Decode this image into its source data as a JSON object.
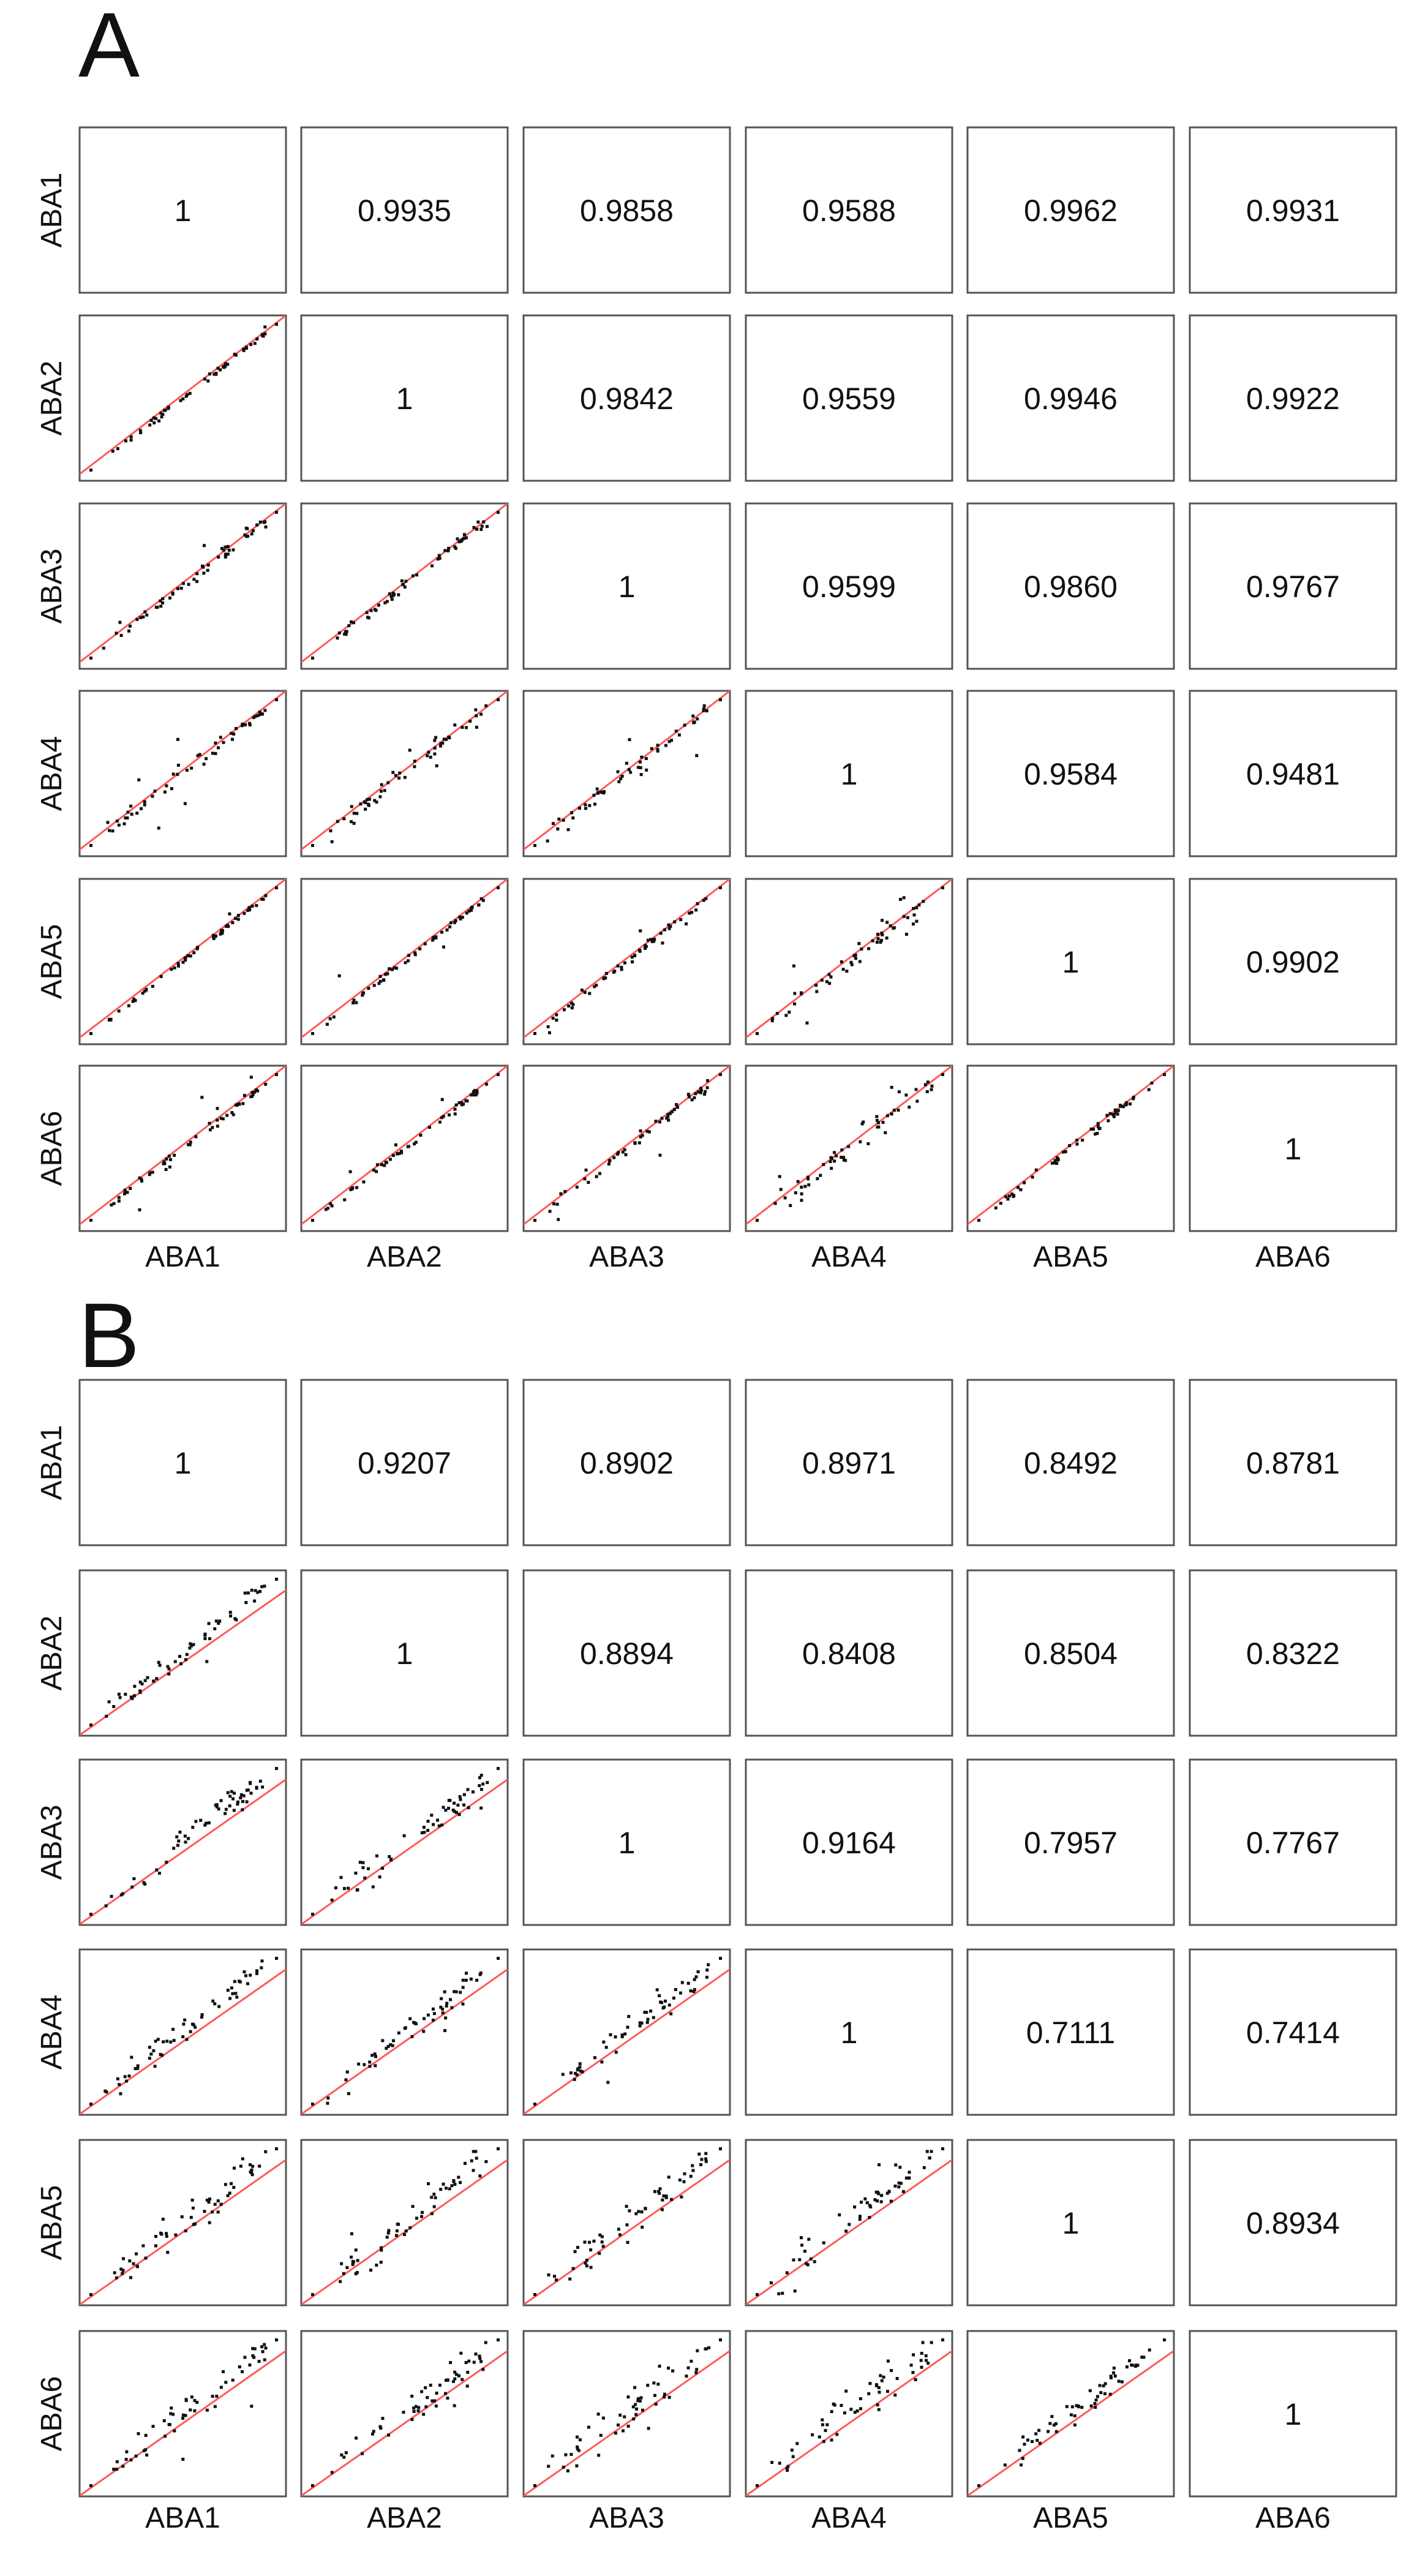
{
  "figure": {
    "colors": {
      "panel_border": "#555555",
      "fit_line": "#ff5a5a",
      "points": "#111111",
      "text": "#111111"
    },
    "panels": [
      {
        "label": "A",
        "variables": [
          "ABA1",
          "ABA2",
          "ABA3",
          "ABA4",
          "ABA5",
          "ABA6"
        ],
        "correlation_matrix": [
          [
            "1",
            "0.9935",
            "0.9858",
            "0.9588",
            "0.9962",
            "0.9931"
          ],
          [
            "",
            "1",
            "0.9842",
            "0.9559",
            "0.9946",
            "0.9922"
          ],
          [
            "",
            "",
            "1",
            "0.9599",
            "0.9860",
            "0.9767"
          ],
          [
            "",
            "",
            "",
            "1",
            "0.9584",
            "0.9481"
          ],
          [
            "",
            "",
            "",
            "",
            "1",
            "0.9902"
          ],
          [
            "",
            "",
            "",
            "",
            "",
            "1"
          ]
        ]
      },
      {
        "label": "B",
        "variables": [
          "ABA1",
          "ABA2",
          "ABA3",
          "ABA4",
          "ABA5",
          "ABA6"
        ],
        "correlation_matrix": [
          [
            "1",
            "0.9207",
            "0.8902",
            "0.8971",
            "0.8492",
            "0.8781"
          ],
          [
            "",
            "1",
            "0.8894",
            "0.8408",
            "0.8504",
            "0.8322"
          ],
          [
            "",
            "",
            "1",
            "0.9164",
            "0.7957",
            "0.7767"
          ],
          [
            "",
            "",
            "",
            "1",
            "0.7111",
            "0.7414"
          ],
          [
            "",
            "",
            "",
            "",
            "1",
            "0.8934"
          ],
          [
            "",
            "",
            "",
            "",
            "",
            "1"
          ]
        ]
      }
    ]
  },
  "chart_data": [
    {
      "type": "scatter",
      "subtype": "scatterplot-matrix",
      "title": "A",
      "variables": [
        "ABA1",
        "ABA2",
        "ABA3",
        "ABA4",
        "ABA5",
        "ABA6"
      ],
      "upper_triangle": "pearson correlation coefficients",
      "lower_triangle": "pairwise scatter plots with linear fit line",
      "fit_line_color": "#ff5a5a",
      "correlations": [
        {
          "row": "ABA1",
          "col": "ABA2",
          "r": 0.9935
        },
        {
          "row": "ABA1",
          "col": "ABA3",
          "r": 0.9858
        },
        {
          "row": "ABA1",
          "col": "ABA4",
          "r": 0.9588
        },
        {
          "row": "ABA1",
          "col": "ABA5",
          "r": 0.9962
        },
        {
          "row": "ABA1",
          "col": "ABA6",
          "r": 0.9931
        },
        {
          "row": "ABA2",
          "col": "ABA3",
          "r": 0.9842
        },
        {
          "row": "ABA2",
          "col": "ABA4",
          "r": 0.9559
        },
        {
          "row": "ABA2",
          "col": "ABA5",
          "r": 0.9946
        },
        {
          "row": "ABA2",
          "col": "ABA6",
          "r": 0.9922
        },
        {
          "row": "ABA3",
          "col": "ABA4",
          "r": 0.9599
        },
        {
          "row": "ABA3",
          "col": "ABA5",
          "r": 0.986
        },
        {
          "row": "ABA3",
          "col": "ABA6",
          "r": 0.9767
        },
        {
          "row": "ABA4",
          "col": "ABA5",
          "r": 0.9584
        },
        {
          "row": "ABA4",
          "col": "ABA6",
          "r": 0.9481
        },
        {
          "row": "ABA5",
          "col": "ABA6",
          "r": 0.9902
        }
      ]
    },
    {
      "type": "scatter",
      "subtype": "scatterplot-matrix",
      "title": "B",
      "variables": [
        "ABA1",
        "ABA2",
        "ABA3",
        "ABA4",
        "ABA5",
        "ABA6"
      ],
      "upper_triangle": "pearson correlation coefficients",
      "lower_triangle": "pairwise scatter plots with linear fit line",
      "fit_line_color": "#ff5a5a",
      "correlations": [
        {
          "row": "ABA1",
          "col": "ABA2",
          "r": 0.9207
        },
        {
          "row": "ABA1",
          "col": "ABA3",
          "r": 0.8902
        },
        {
          "row": "ABA1",
          "col": "ABA4",
          "r": 0.8971
        },
        {
          "row": "ABA1",
          "col": "ABA5",
          "r": 0.8492
        },
        {
          "row": "ABA1",
          "col": "ABA6",
          "r": 0.8781
        },
        {
          "row": "ABA2",
          "col": "ABA3",
          "r": 0.8894
        },
        {
          "row": "ABA2",
          "col": "ABA4",
          "r": 0.8408
        },
        {
          "row": "ABA2",
          "col": "ABA5",
          "r": 0.8504
        },
        {
          "row": "ABA2",
          "col": "ABA6",
          "r": 0.8322
        },
        {
          "row": "ABA3",
          "col": "ABA4",
          "r": 0.9164
        },
        {
          "row": "ABA3",
          "col": "ABA5",
          "r": 0.7957
        },
        {
          "row": "ABA3",
          "col": "ABA6",
          "r": 0.7767
        },
        {
          "row": "ABA4",
          "col": "ABA5",
          "r": 0.7111
        },
        {
          "row": "ABA4",
          "col": "ABA6",
          "r": 0.7414
        },
        {
          "row": "ABA5",
          "col": "ABA6",
          "r": 0.8934
        }
      ]
    }
  ]
}
